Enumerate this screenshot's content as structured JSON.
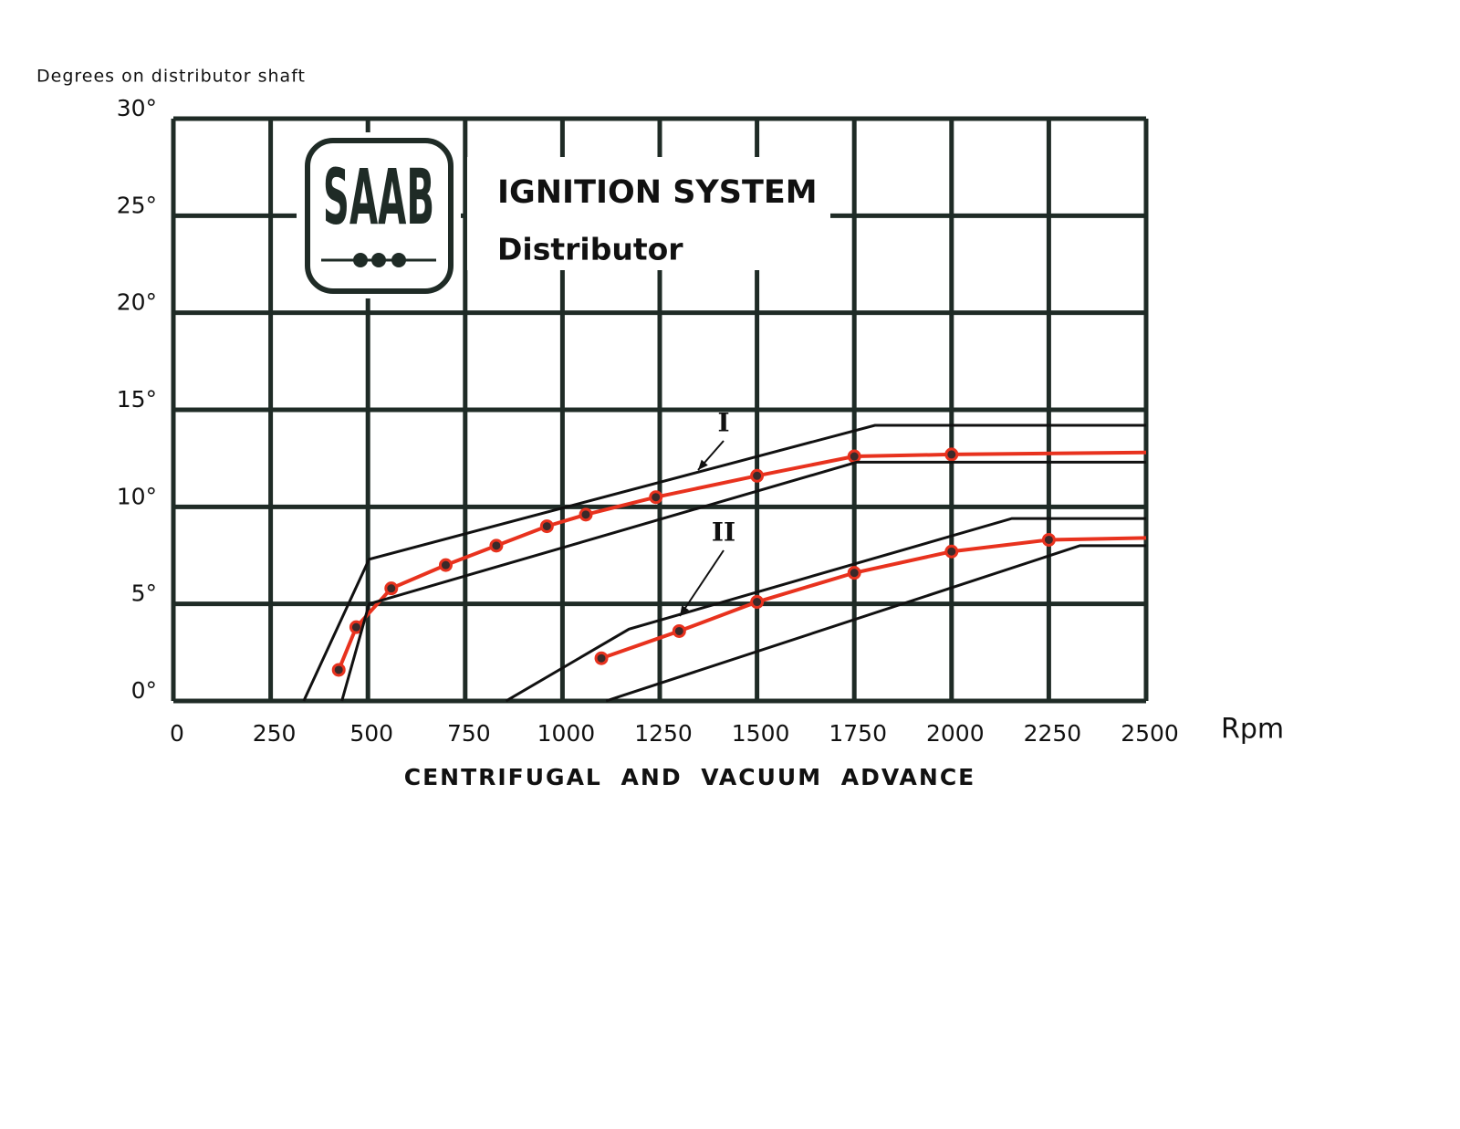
{
  "chart_data": {
    "type": "line",
    "logo": "SAAB",
    "title": "IGNITION SYSTEM",
    "subtitle": "Distributor",
    "y_label": "Degrees on distributor shaft",
    "x_unit": "Rpm",
    "x_label": "CENTRIFUGAL AND VACUUM ADVANCE",
    "xlim": [
      0,
      2500
    ],
    "ylim": [
      0,
      30
    ],
    "xticks": [
      0,
      250,
      500,
      750,
      1000,
      1250,
      1500,
      1750,
      2000,
      2250,
      2500
    ],
    "yticks": [
      {
        "value": 0,
        "label": "0°"
      },
      {
        "value": 5,
        "label": "5°"
      },
      {
        "value": 10,
        "label": "10°"
      },
      {
        "value": 15,
        "label": "15°"
      },
      {
        "value": 20,
        "label": "20°"
      },
      {
        "value": 25,
        "label": "25°"
      },
      {
        "value": 30,
        "label": "30°"
      }
    ],
    "grid": true,
    "grid_color": "#1f2b26",
    "series": [
      {
        "name": "I",
        "color": "#e8321e",
        "marker": true,
        "x": [
          425,
          470,
          560,
          700,
          830,
          960,
          1060,
          1240,
          1500,
          1750,
          2000,
          2500
        ],
        "values": [
          1.6,
          3.8,
          5.8,
          7.0,
          8.0,
          9.0,
          9.6,
          10.5,
          11.6,
          12.6,
          12.7,
          12.8
        ]
      },
      {
        "name": "II",
        "color": "#e8321e",
        "marker": true,
        "x": [
          1100,
          1300,
          1500,
          1750,
          2000,
          2250,
          2500
        ],
        "values": [
          2.2,
          3.6,
          5.1,
          6.6,
          7.7,
          8.3,
          8.4
        ]
      },
      {
        "color": "#111111",
        "marker": false,
        "x": [
          335,
          503,
          1803,
          2500
        ],
        "values": [
          0,
          7.3,
          14.2,
          14.2
        ]
      },
      {
        "color": "#111111",
        "marker": false,
        "x": [
          433,
          503,
          1756,
          2500
        ],
        "values": [
          0,
          5.0,
          12.3,
          12.3
        ]
      },
      {
        "color": "#111111",
        "marker": false,
        "x": [
          855,
          1171,
          2155,
          2500
        ],
        "values": [
          0,
          3.7,
          9.4,
          9.4
        ]
      },
      {
        "color": "#111111",
        "marker": false,
        "x": [
          1112,
          2330,
          2500
        ],
        "values": [
          0,
          8.0,
          8.0
        ]
      }
    ]
  }
}
